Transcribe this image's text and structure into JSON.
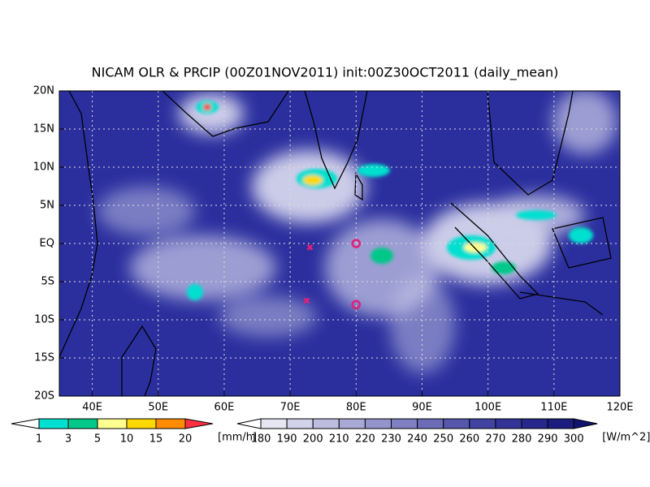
{
  "map": {
    "title": "NICAM OLR & PRCIP (00Z01NOV2011) init:00Z30OCT2011 (daily_mean)",
    "xlim": [
      35,
      120
    ],
    "ylim": [
      -20,
      20
    ],
    "xticks": [
      {
        "value": 40,
        "label": "40E"
      },
      {
        "value": 50,
        "label": "50E"
      },
      {
        "value": 60,
        "label": "60E"
      },
      {
        "value": 70,
        "label": "70E"
      },
      {
        "value": 80,
        "label": "80E"
      },
      {
        "value": 90,
        "label": "90E"
      },
      {
        "value": 100,
        "label": "100E"
      },
      {
        "value": 110,
        "label": "110E"
      },
      {
        "value": 120,
        "label": "120E"
      }
    ],
    "yticks": [
      {
        "value": 20,
        "label": "20N"
      },
      {
        "value": 15,
        "label": "15N"
      },
      {
        "value": 10,
        "label": "10N"
      },
      {
        "value": 5,
        "label": "5N"
      },
      {
        "value": 0,
        "label": "EQ"
      },
      {
        "value": -5,
        "label": "5S"
      },
      {
        "value": -10,
        "label": "10S"
      },
      {
        "value": -15,
        "label": "15S"
      },
      {
        "value": -20,
        "label": "20S"
      }
    ],
    "grid": true,
    "markers": [
      {
        "symbol": "x",
        "lon": 73,
        "lat": -0.5,
        "color": "#e0207a"
      },
      {
        "symbol": "x",
        "lon": 72.5,
        "lat": -7.5,
        "color": "#e0207a"
      },
      {
        "symbol": "o",
        "lon": 80,
        "lat": 0,
        "color": "#e0207a"
      },
      {
        "symbol": "o",
        "lon": 80,
        "lat": -8,
        "color": "#e0207a"
      }
    ]
  },
  "colorbars": [
    {
      "levels": [
        1,
        3,
        5,
        10,
        15,
        20
      ],
      "unit": "[mm/h]",
      "colors": [
        "#ffffff",
        "#00e0d0",
        "#00c888",
        "#ffff90",
        "#ffd800",
        "#ff8c00",
        "#ff3040"
      ]
    },
    {
      "levels": [
        180,
        190,
        200,
        210,
        220,
        230,
        240,
        250,
        260,
        270,
        280,
        290,
        300
      ],
      "unit": "[W/m^2]",
      "colors": [
        "#ffffff",
        "#e6e6f2",
        "#d2d2ea",
        "#bdbde0",
        "#a9a9d6",
        "#9494cc",
        "#7f7fc2",
        "#6b6bb8",
        "#5656ad",
        "#4242a3",
        "#333399",
        "#26268c",
        "#1c1c80",
        "#121270"
      ]
    }
  ]
}
